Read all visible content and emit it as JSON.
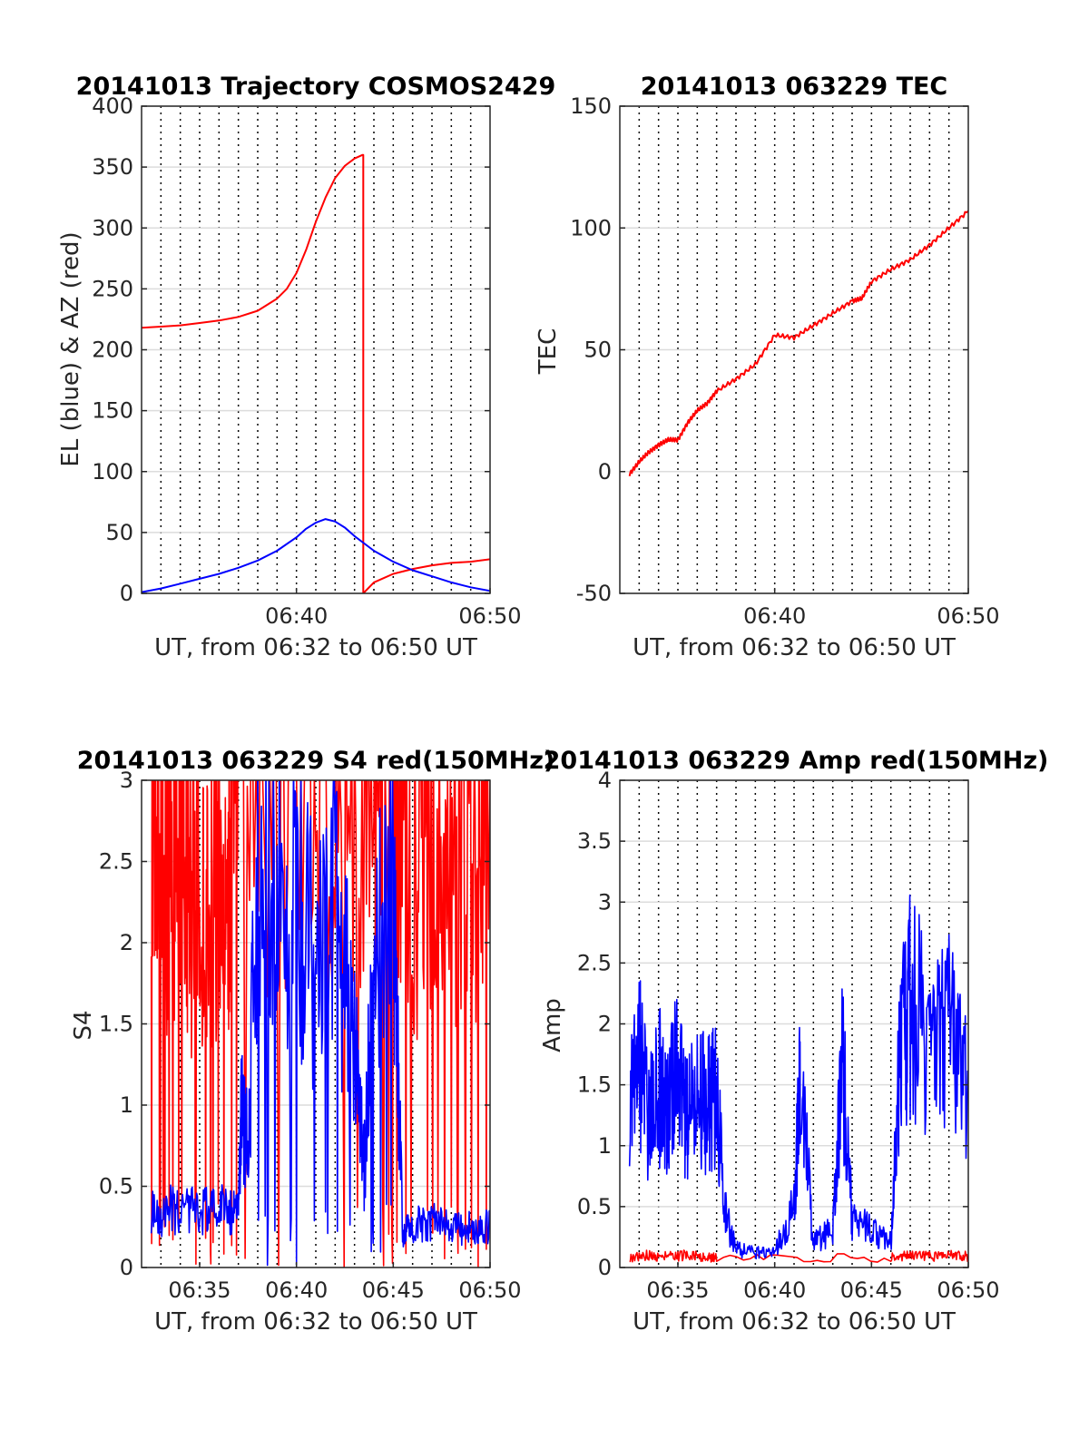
{
  "chart_data": [
    {
      "type": "line",
      "title": "20141013 Trajectory COSMOS2429",
      "xlabel": "UT, from 06:32 to 06:50 UT",
      "ylabel": "EL (blue) & AZ (red)",
      "xlim": [
        "06:32",
        "06:50"
      ],
      "ylim": [
        0,
        400
      ],
      "xticks": [
        "06:40",
        "06:50"
      ],
      "yticks": [
        "0",
        "50",
        "100",
        "150",
        "200",
        "250",
        "300",
        "350",
        "400"
      ],
      "grid": true,
      "series": [
        {
          "color": "#ff0000",
          "x": [
            "06:32:00",
            "06:33:00",
            "06:34:00",
            "06:35:00",
            "06:36:00",
            "06:37:00",
            "06:38:00",
            "06:39:00",
            "06:39:30",
            "06:40:00",
            "06:40:30",
            "06:41:00",
            "06:41:30",
            "06:42:00",
            "06:42:30",
            "06:43:00",
            "06:43:25",
            "06:43:27",
            "06:44:00",
            "06:45:00",
            "06:46:00",
            "06:47:00",
            "06:48:00",
            "06:49:00",
            "06:50:00"
          ],
          "values": [
            218,
            219,
            220,
            222,
            224,
            227,
            232,
            242,
            250,
            263,
            282,
            305,
            325,
            341,
            351,
            357,
            360,
            0,
            9,
            16,
            20,
            23,
            25,
            26,
            28
          ]
        },
        {
          "color": "#0000ff",
          "x": [
            "06:32:00",
            "06:33:00",
            "06:34:00",
            "06:35:00",
            "06:36:00",
            "06:37:00",
            "06:38:00",
            "06:39:00",
            "06:40:00",
            "06:40:30",
            "06:41:00",
            "06:41:30",
            "06:42:00",
            "06:42:30",
            "06:43:00",
            "06:44:00",
            "06:45:00",
            "06:46:00",
            "06:47:00",
            "06:48:00",
            "06:49:00",
            "06:50:00"
          ],
          "values": [
            1,
            4,
            8,
            12,
            16,
            21,
            27,
            35,
            46,
            53,
            58,
            61,
            59,
            54,
            47,
            35,
            26,
            19,
            14,
            9,
            5,
            2
          ]
        }
      ]
    },
    {
      "type": "line",
      "title": "20141013 063229 TEC",
      "xlabel": "UT, from 06:32 to 06:50 UT",
      "ylabel": "TEC",
      "xlim": [
        "06:32",
        "06:50"
      ],
      "ylim": [
        -50,
        150
      ],
      "xticks": [
        "06:40",
        "06:50"
      ],
      "yticks": [
        "-50",
        "0",
        "50",
        "100",
        "150"
      ],
      "grid": true,
      "series": [
        {
          "color": "#ff0000",
          "x": [
            "06:32:30",
            "06:33:00",
            "06:33:30",
            "06:34:00",
            "06:34:30",
            "06:35:00",
            "06:35:30",
            "06:36:00",
            "06:36:30",
            "06:37:00",
            "06:38:00",
            "06:39:00",
            "06:40:00",
            "06:41:00",
            "06:42:00",
            "06:43:00",
            "06:44:00",
            "06:44:30",
            "06:45:00",
            "06:46:00",
            "06:47:00",
            "06:48:00",
            "06:49:00",
            "06:50:00"
          ],
          "values": [
            -1,
            4,
            8,
            11,
            13,
            13,
            20,
            25,
            28,
            33,
            38,
            44,
            56,
            55,
            60,
            65,
            70,
            71,
            78,
            83,
            87,
            93,
            100,
            107
          ]
        }
      ]
    },
    {
      "type": "line",
      "title": "20141013 063229 S4 red(150MHz)",
      "xlabel": "UT, from 06:32 to 06:50 UT",
      "ylabel": "S4",
      "xlim": [
        "06:32",
        "06:50"
      ],
      "ylim": [
        0,
        3
      ],
      "xticks": [
        "06:35",
        "06:40",
        "06:45",
        "06:50"
      ],
      "yticks": [
        "0",
        "0.5",
        "1",
        "1.5",
        "2",
        "2.5",
        "3"
      ],
      "grid": true,
      "series": [
        {
          "color": "#ff0000",
          "x": [
            "06:32:30",
            "06:33:00",
            "06:33:30",
            "06:34:00",
            "06:34:30",
            "06:35:00",
            "06:35:30",
            "06:36:00",
            "06:36:30",
            "06:37:00",
            "06:40:00",
            "06:42:00",
            "06:44:00",
            "06:45:00",
            "06:46:00",
            "06:47:00",
            "06:48:00",
            "06:49:00",
            "06:50:00"
          ],
          "values": [
            3,
            2.6,
            2.4,
            2.8,
            2.2,
            2.5,
            2.3,
            2.6,
            2.4,
            3,
            3,
            3,
            3,
            2.8,
            2.5,
            2.7,
            2.4,
            2.6,
            3
          ]
        },
        {
          "color": "#0000ff",
          "x": [
            "06:32:30",
            "06:33:30",
            "06:34:30",
            "06:35:30",
            "06:36:30",
            "06:37:00",
            "06:37:10",
            "06:37:30",
            "06:38:00",
            "06:39:00",
            "06:40:00",
            "06:41:00",
            "06:42:00",
            "06:43:00",
            "06:43:30",
            "06:44:00",
            "06:45:00",
            "06:45:30",
            "06:46:00",
            "06:47:00",
            "06:48:00",
            "06:49:00",
            "06:50:00"
          ],
          "values": [
            0.33,
            0.35,
            0.34,
            0.36,
            0.35,
            0.34,
            0.95,
            0.75,
            2.5,
            2.2,
            2.4,
            1.8,
            2.2,
            1.4,
            0.6,
            1.9,
            2.3,
            0.2,
            0.26,
            0.28,
            0.25,
            0.24,
            0.25
          ]
        }
      ]
    },
    {
      "type": "line",
      "title": "20141013 063229 Amp red(150MHz)",
      "xlabel": "UT, from 06:32 to 06:50 UT",
      "ylabel": "Amp",
      "xlim": [
        "06:32",
        "06:50"
      ],
      "ylim": [
        0,
        4
      ],
      "xticks": [
        "06:35",
        "06:40",
        "06:45",
        "06:50"
      ],
      "yticks": [
        "0",
        "0.5",
        "1",
        "1.5",
        "2",
        "2.5",
        "3",
        "3.5",
        "4"
      ],
      "grid": true,
      "series": [
        {
          "color": "#ff0000",
          "x": [
            "06:32:30",
            "06:33:30",
            "06:34:30",
            "06:35:30",
            "06:36:30",
            "06:37:00",
            "06:46:00",
            "06:47:00",
            "06:48:00",
            "06:49:00",
            "06:50:00"
          ],
          "values": [
            0.08,
            0.1,
            0.09,
            0.1,
            0.08,
            0.09,
            0.08,
            0.1,
            0.09,
            0.1,
            0.09
          ]
        },
        {
          "color": "#0000ff",
          "x": [
            "06:32:30",
            "06:33:00",
            "06:33:30",
            "06:34:00",
            "06:34:30",
            "06:35:00",
            "06:35:30",
            "06:36:00",
            "06:36:30",
            "06:37:00",
            "06:37:30",
            "06:38:00",
            "06:39:00",
            "06:40:00",
            "06:41:00",
            "06:41:20",
            "06:42:00",
            "06:43:00",
            "06:43:30",
            "06:44:00",
            "06:45:00",
            "06:46:00",
            "06:46:30",
            "06:47:00",
            "06:48:00",
            "06:49:00",
            "06:50:00"
          ],
          "values": [
            1.3,
            1.7,
            1.2,
            1.5,
            1.3,
            1.6,
            1.2,
            1.4,
            1.3,
            1.5,
            0.4,
            0.15,
            0.12,
            0.13,
            0.5,
            1.6,
            0.2,
            0.3,
            1.7,
            0.4,
            0.3,
            0.2,
            1.8,
            2.2,
            1.8,
            2.1,
            1.4
          ]
        }
      ]
    }
  ]
}
